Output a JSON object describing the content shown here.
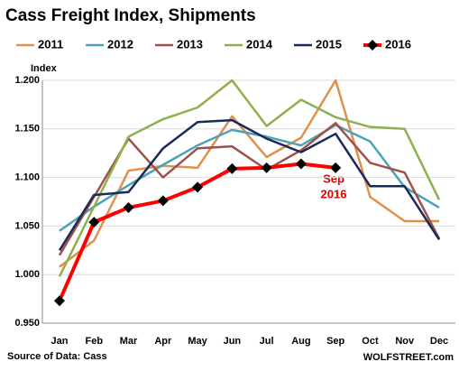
{
  "chart_data": {
    "type": "line",
    "title": "Cass Freight Index,  Shipments",
    "y_label": "Index",
    "source": "Source of Data: Cass",
    "watermark": "WOLFSTREET.com",
    "annotation": [
      "Sep",
      "2016"
    ],
    "categories": [
      "Jan",
      "Feb",
      "Mar",
      "Apr",
      "May",
      "Jun",
      "Jul",
      "Aug",
      "Sep",
      "Oct",
      "Nov",
      "Dec"
    ],
    "ylim": [
      0.95,
      1.2
    ],
    "yticks": [
      {
        "value": 0.95,
        "label": "0.950"
      },
      {
        "value": 1.0,
        "label": "1.000"
      },
      {
        "value": 1.05,
        "label": "1.050"
      },
      {
        "value": 1.1,
        "label": "1.100"
      },
      {
        "value": 1.15,
        "label": "1.150"
      },
      {
        "value": 1.2,
        "label": "1.200"
      }
    ],
    "grid": true,
    "series": [
      {
        "name": "2011",
        "color": "#e0904a",
        "values": [
          1.008,
          1.035,
          1.107,
          1.112,
          1.11,
          1.163,
          1.121,
          1.141,
          1.2,
          1.08,
          1.055,
          1.055
        ]
      },
      {
        "name": "2012",
        "color": "#4aa3b5",
        "values": [
          1.045,
          1.07,
          1.092,
          1.113,
          1.133,
          1.149,
          1.142,
          1.133,
          1.154,
          1.137,
          1.09,
          1.069
        ]
      },
      {
        "name": "2013",
        "color": "#a0504a",
        "values": [
          1.02,
          1.08,
          1.14,
          1.1,
          1.13,
          1.132,
          1.108,
          1.128,
          1.156,
          1.115,
          1.105,
          1.037
        ]
      },
      {
        "name": "2014",
        "color": "#8fb04a",
        "values": [
          0.998,
          1.07,
          1.142,
          1.16,
          1.172,
          1.2,
          1.153,
          1.18,
          1.162,
          1.152,
          1.15,
          1.077
        ]
      },
      {
        "name": "2015",
        "color": "#1a2b5a",
        "values": [
          1.025,
          1.082,
          1.085,
          1.13,
          1.157,
          1.159,
          1.14,
          1.126,
          1.145,
          1.091,
          1.091,
          1.036
        ]
      },
      {
        "name": "2016",
        "color": "#ff0000",
        "values": [
          0.973,
          1.054,
          1.069,
          1.076,
          1.09,
          1.109,
          1.11,
          1.114,
          1.11,
          null,
          null,
          null
        ]
      }
    ]
  }
}
